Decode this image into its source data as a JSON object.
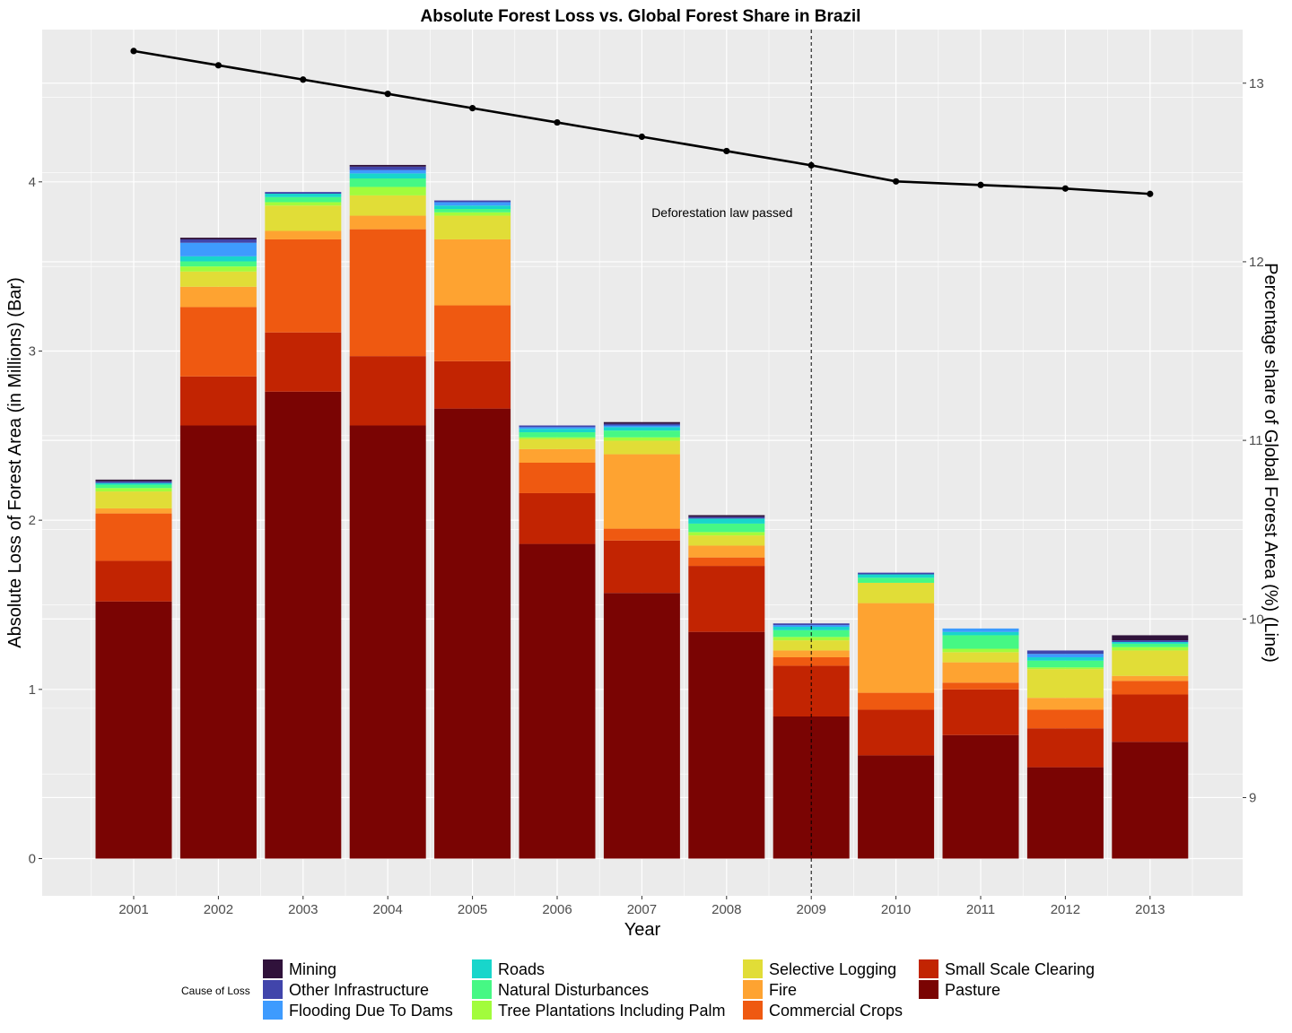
{
  "chart_data": {
    "type": "bar",
    "subtype": "stacked bar with line overlay (dual y-axis)",
    "title": "Absolute Forest Loss vs. Global Forest Share in Brazil",
    "xlabel": "Year",
    "ylabel_left": "Absolute Loss of Forest Area (in  Millions) (Bar)",
    "ylabel_right": "Percentage share of Global Forest Area (%) (Line)",
    "ylim_left": [
      -0.22,
      4.9
    ],
    "ylim_right": [
      8.45,
      13.3
    ],
    "yticks_left": [
      0,
      1,
      2,
      3,
      4
    ],
    "yticks_right": [
      9,
      10,
      11,
      12,
      13
    ],
    "categories": [
      "2001",
      "2002",
      "2003",
      "2004",
      "2005",
      "2006",
      "2007",
      "2008",
      "2009",
      "2010",
      "2011",
      "2012",
      "2013"
    ],
    "grid": true,
    "background": "#ebebeb",
    "legend_position": "bottom",
    "legend_title": "Cause of Loss",
    "legend": [
      {
        "name": "Mining",
        "color": "#30123b"
      },
      {
        "name": "Other Infrastructure",
        "color": "#4145ab"
      },
      {
        "name": "Flooding Due To Dams",
        "color": "#3e9bfe"
      },
      {
        "name": "Roads",
        "color": "#18d6cb"
      },
      {
        "name": "Natural Disturbances",
        "color": "#46f884"
      },
      {
        "name": "Tree Plantations Including Palm",
        "color": "#a2fc3c"
      },
      {
        "name": "Selective Logging",
        "color": "#e1dd37"
      },
      {
        "name": "Fire",
        "color": "#fea331"
      },
      {
        "name": "Commercial Crops",
        "color": "#ef5911"
      },
      {
        "name": "Small Scale Clearing",
        "color": "#c22402"
      },
      {
        "name": "Pasture",
        "color": "#7a0403"
      }
    ],
    "series": [
      {
        "name": "Pasture",
        "color": "#7a0403",
        "values": [
          1.52,
          2.56,
          2.76,
          2.56,
          2.66,
          1.86,
          1.57,
          1.34,
          0.84,
          0.61,
          0.73,
          0.54,
          0.69
        ]
      },
      {
        "name": "Small Scale Clearing",
        "color": "#c22402",
        "values": [
          0.24,
          0.29,
          0.35,
          0.41,
          0.28,
          0.3,
          0.31,
          0.39,
          0.3,
          0.27,
          0.27,
          0.23,
          0.28
        ]
      },
      {
        "name": "Commercial Crops",
        "color": "#ef5911",
        "values": [
          0.28,
          0.41,
          0.55,
          0.75,
          0.33,
          0.18,
          0.07,
          0.05,
          0.05,
          0.1,
          0.04,
          0.11,
          0.08
        ]
      },
      {
        "name": "Fire",
        "color": "#fea331",
        "values": [
          0.03,
          0.12,
          0.05,
          0.08,
          0.39,
          0.08,
          0.44,
          0.07,
          0.04,
          0.53,
          0.12,
          0.07,
          0.03
        ]
      },
      {
        "name": "Selective Logging",
        "color": "#e1dd37",
        "values": [
          0.1,
          0.09,
          0.15,
          0.12,
          0.14,
          0.06,
          0.08,
          0.06,
          0.06,
          0.12,
          0.06,
          0.17,
          0.15
        ]
      },
      {
        "name": "Tree Plantations Including Palm",
        "color": "#a2fc3c",
        "values": [
          0.02,
          0.03,
          0.02,
          0.05,
          0.02,
          0.01,
          0.02,
          0.02,
          0.02,
          0.0,
          0.02,
          0.01,
          0.02
        ]
      },
      {
        "name": "Natural Disturbances",
        "color": "#46f884",
        "values": [
          0.02,
          0.03,
          0.03,
          0.05,
          0.02,
          0.03,
          0.04,
          0.05,
          0.04,
          0.03,
          0.08,
          0.04,
          0.02
        ]
      },
      {
        "name": "Roads",
        "color": "#18d6cb",
        "values": [
          0.01,
          0.03,
          0.02,
          0.03,
          0.02,
          0.02,
          0.02,
          0.03,
          0.02,
          0.02,
          0.02,
          0.02,
          0.01
        ]
      },
      {
        "name": "Flooding Due To Dams",
        "color": "#3e9bfe",
        "values": [
          0.0,
          0.08,
          0.0,
          0.02,
          0.02,
          0.01,
          0.01,
          0.0,
          0.01,
          0.0,
          0.02,
          0.02,
          0.0
        ]
      },
      {
        "name": "Other Infrastructure",
        "color": "#4145ab",
        "values": [
          0.01,
          0.02,
          0.01,
          0.02,
          0.01,
          0.01,
          0.01,
          0.01,
          0.01,
          0.01,
          0.0,
          0.02,
          0.01
        ]
      },
      {
        "name": "Mining",
        "color": "#30123b",
        "values": [
          0.01,
          0.01,
          0.0,
          0.01,
          0.0,
          0.0,
          0.01,
          0.01,
          0.0,
          0.0,
          0.0,
          0.0,
          0.03
        ]
      }
    ],
    "line": {
      "axis": "right",
      "color": "#000000",
      "values": [
        13.18,
        13.1,
        13.02,
        12.94,
        12.86,
        12.78,
        12.7,
        12.62,
        12.54,
        12.45,
        12.43,
        12.41,
        12.38
      ]
    },
    "vline": {
      "x": "2009",
      "style": "dashed"
    },
    "annotations": [
      {
        "text": "Deforestation law passed",
        "x": "2008",
        "y_left": 3.82
      }
    ]
  }
}
